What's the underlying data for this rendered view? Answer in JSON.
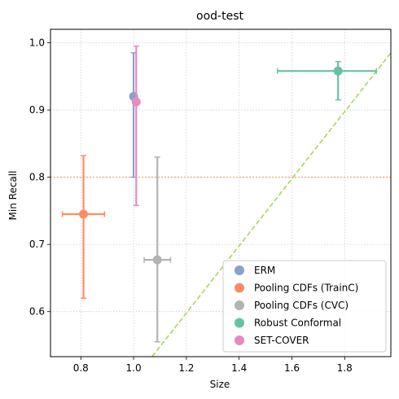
{
  "chart_data": {
    "type": "scatter",
    "title": "ood-test",
    "xlabel": "Size",
    "ylabel": "Min Recall",
    "xlim": [
      0.685,
      1.975
    ],
    "ylim": [
      0.533,
      1.02
    ],
    "xticks": [
      0.8,
      1.0,
      1.2,
      1.4,
      1.6,
      1.8
    ],
    "xtick_labels": [
      "0.8",
      "1.0",
      "1.2",
      "1.4",
      "1.6",
      "1.8"
    ],
    "yticks": [
      0.6,
      0.7,
      0.8,
      0.9,
      1.0
    ],
    "ytick_labels": [
      "0.6",
      "0.7",
      "0.8",
      "0.9",
      "1.0"
    ],
    "grid": true,
    "legend_position": "lower-right",
    "series": [
      {
        "name": "ERM",
        "color": "#8da0cb",
        "x": 1.0,
        "y": 0.92,
        "xerr": [
          0.0,
          0.0
        ],
        "yerr": [
          0.8,
          0.985
        ]
      },
      {
        "name": "Pooling CDFs (TrainC)",
        "color": "#fc8d62",
        "x": 0.81,
        "y": 0.745,
        "xerr": [
          0.73,
          0.89
        ],
        "yerr": [
          0.62,
          0.832
        ]
      },
      {
        "name": "Pooling CDFs (CVC)",
        "color": "#b3b3b3",
        "x": 1.09,
        "y": 0.677,
        "xerr": [
          1.04,
          1.14
        ],
        "yerr": [
          0.555,
          0.83
        ]
      },
      {
        "name": "Robust Conformal",
        "color": "#66c2a5",
        "x": 1.775,
        "y": 0.958,
        "xerr": [
          1.545,
          1.92
        ],
        "yerr": [
          0.915,
          0.972
        ]
      },
      {
        "name": "SET-COVER",
        "color": "#e78ac3",
        "x": 1.01,
        "y": 0.912,
        "xerr": [
          1.0,
          1.01
        ],
        "yerr": [
          0.758,
          0.995
        ]
      }
    ],
    "reference_lines": [
      {
        "type": "horizontal",
        "y": 0.8,
        "color": "#f4b183",
        "style": "dotted"
      },
      {
        "type": "diagonal",
        "points": [
          [
            1.07,
            0.533
          ],
          [
            1.975,
            0.985
          ]
        ],
        "color": "#a6d854",
        "style": "dashed"
      }
    ]
  }
}
